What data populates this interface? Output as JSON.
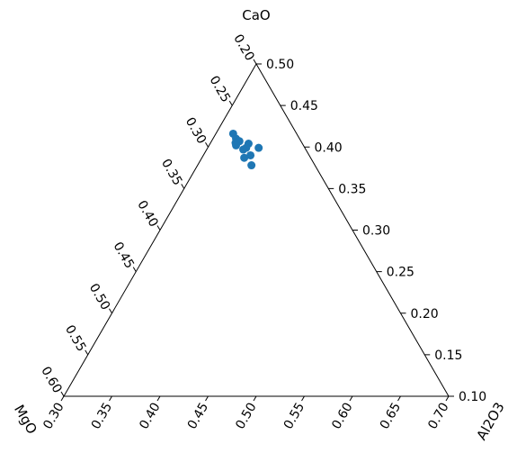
{
  "chart_data": {
    "type": "scatter",
    "subtype": "ternary",
    "axes": {
      "top": {
        "label": "CaO",
        "range": [
          0.1,
          0.5
        ],
        "ticks": [
          "0.10",
          "0.15",
          "0.20",
          "0.25",
          "0.30",
          "0.35",
          "0.40",
          "0.45",
          "0.50"
        ]
      },
      "left": {
        "label": "MgO",
        "range": [
          0.2,
          0.6
        ],
        "ticks": [
          "0.20",
          "0.25",
          "0.30",
          "0.35",
          "0.40",
          "0.45",
          "0.50",
          "0.55",
          "0.60"
        ]
      },
      "right": {
        "label": "Al2O3",
        "range": [
          0.3,
          0.7
        ],
        "ticks": [
          "0.30",
          "0.35",
          "0.40",
          "0.45",
          "0.50",
          "0.55",
          "0.60",
          "0.65",
          "0.70"
        ]
      }
    },
    "series": [
      {
        "marker_color": "#1f77b4",
        "points": [
          {
            "CaO": 0.416,
            "MgO": 0.266,
            "Al2O3": 0.318
          },
          {
            "CaO": 0.41,
            "MgO": 0.266,
            "Al2O3": 0.324
          },
          {
            "CaO": 0.405,
            "MgO": 0.269,
            "Al2O3": 0.326
          },
          {
            "CaO": 0.407,
            "MgO": 0.264,
            "Al2O3": 0.329
          },
          {
            "CaO": 0.402,
            "MgO": 0.27,
            "Al2O3": 0.328
          },
          {
            "CaO": 0.404,
            "MgO": 0.256,
            "Al2O3": 0.34
          },
          {
            "CaO": 0.399,
            "MgO": 0.261,
            "Al2O3": 0.34
          },
          {
            "CaO": 0.397,
            "MgO": 0.265,
            "Al2O3": 0.338
          },
          {
            "CaO": 0.399,
            "MgO": 0.248,
            "Al2O3": 0.353
          },
          {
            "CaO": 0.39,
            "MgO": 0.261,
            "Al2O3": 0.349
          },
          {
            "CaO": 0.387,
            "MgO": 0.269,
            "Al2O3": 0.344
          },
          {
            "CaO": 0.378,
            "MgO": 0.266,
            "Al2O3": 0.356
          }
        ]
      }
    ],
    "grid": false
  }
}
